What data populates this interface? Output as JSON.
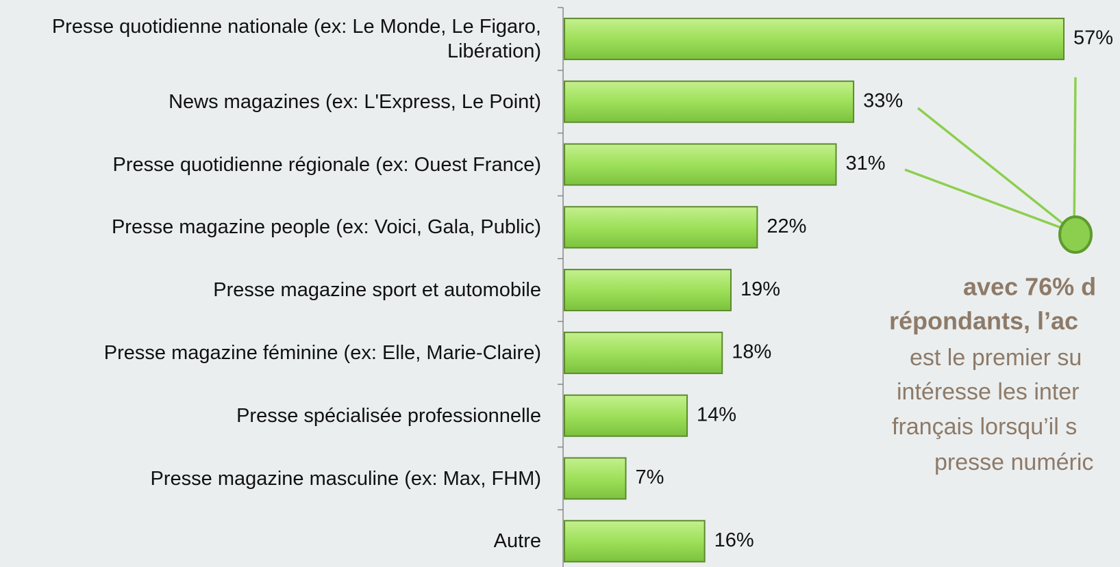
{
  "chart_data": {
    "type": "bar",
    "orientation": "horizontal",
    "categories": [
      "Presse quotidienne nationale (ex: Le Monde, Le Figaro, Libération)",
      "News magazines (ex: L'Express, Le Point)",
      "Presse quotidienne régionale (ex: Ouest France)",
      "Presse magazine people (ex: Voici, Gala, Public)",
      "Presse magazine sport et automobile",
      "Presse magazine féminine (ex: Elle, Marie-Claire)",
      "Presse spécialisée professionnelle",
      "Presse magazine masculine (ex: Max, FHM)",
      "Autre"
    ],
    "values": [
      57,
      33,
      31,
      22,
      19,
      18,
      14,
      7,
      16
    ],
    "value_labels": [
      "57%",
      "33%",
      "31%",
      "22%",
      "19%",
      "18%",
      "14%",
      "7%",
      "16%"
    ],
    "color": "#9ee05a",
    "annotation": [
      "avec 76% d",
      "répondants, l’ac",
      "est le premier su",
      "intéresse les inter",
      "français lorsqu’il s",
      "presse numéric"
    ]
  }
}
